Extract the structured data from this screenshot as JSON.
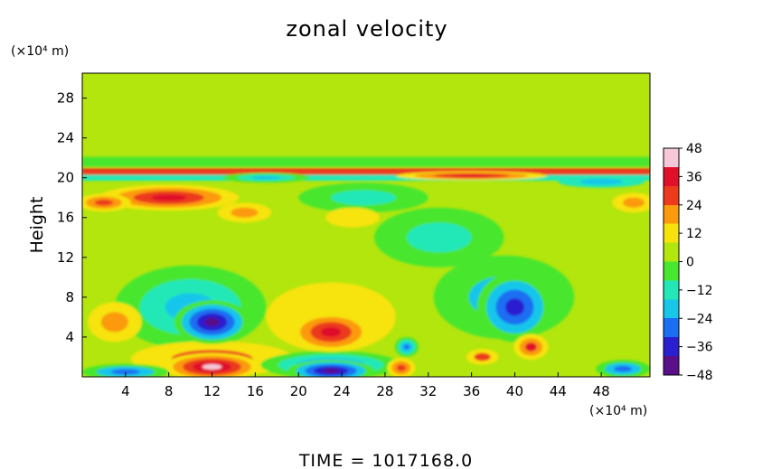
{
  "chart_data": {
    "type": "heatmap",
    "title": "zonal velocity",
    "ylabel": "Height",
    "xlabel": "",
    "x_unit_label": "(×10⁴ m)",
    "y_unit_label": "(×10⁴ m)",
    "xlim": [
      0,
      52.5
    ],
    "ylim": [
      0,
      30.5
    ],
    "x_ticks": [
      "4",
      "8",
      "12",
      "16",
      "20",
      "24",
      "28",
      "32",
      "36",
      "40",
      "44",
      "48"
    ],
    "y_ticks": [
      "4",
      "8",
      "12",
      "16",
      "20",
      "24",
      "28"
    ],
    "colorbar": {
      "range": [
        -48,
        48
      ],
      "ticks": [
        "48",
        "36",
        "24",
        "12",
        "0",
        "−12",
        "−24",
        "−36",
        "−48"
      ],
      "colors": [
        "#5a0f8a",
        "#2a1fd0",
        "#1a6ef2",
        "#18c6ea",
        "#22e8b8",
        "#49e62f",
        "#b2e60d",
        "#f7e30c",
        "#fb9a0c",
        "#ec3a1c",
        "#e00f2a",
        "#f7c8d8"
      ]
    },
    "background_value": 2,
    "features": [
      {
        "x": 12,
        "y": 5.5,
        "value": -44,
        "rx": 3.5,
        "ry": 2.2
      },
      {
        "x": 10,
        "y": 7,
        "value": -22,
        "rx": 7,
        "ry": 4.2
      },
      {
        "x": 40,
        "y": 7,
        "value": -38,
        "rx": 3.5,
        "ry": 3.5
      },
      {
        "x": 39,
        "y": 8,
        "value": -18,
        "rx": 6.5,
        "ry": 4.2
      },
      {
        "x": 23,
        "y": 4.5,
        "value": 36,
        "rx": 3.8,
        "ry": 2
      },
      {
        "x": 23,
        "y": 6,
        "value": 14,
        "rx": 6,
        "ry": 3.5
      },
      {
        "x": 41.5,
        "y": 3,
        "value": 32,
        "rx": 1.6,
        "ry": 1.3
      },
      {
        "x": 3,
        "y": 5.5,
        "value": 20,
        "rx": 2.5,
        "ry": 2
      },
      {
        "x": 12,
        "y": 1,
        "value": 44,
        "rx": 4.5,
        "ry": 1.4
      },
      {
        "x": 12,
        "y": 1.8,
        "value": 24,
        "rx": 7.5,
        "ry": 1.8
      },
      {
        "x": 23,
        "y": 0.6,
        "value": -46,
        "rx": 4,
        "ry": 1.1
      },
      {
        "x": 23,
        "y": 1.2,
        "value": -30,
        "rx": 6.5,
        "ry": 1.4
      },
      {
        "x": 30,
        "y": 3,
        "value": -32,
        "rx": 1.1,
        "ry": 1
      },
      {
        "x": 29.5,
        "y": 0.9,
        "value": 30,
        "rx": 1.3,
        "ry": 1
      },
      {
        "x": 4,
        "y": 0.5,
        "value": -26,
        "rx": 4,
        "ry": 0.8
      },
      {
        "x": 37,
        "y": 2,
        "value": 24,
        "rx": 1.5,
        "ry": 0.8
      },
      {
        "x": 50,
        "y": 0.8,
        "value": -26,
        "rx": 2.5,
        "ry": 0.9
      },
      {
        "x": 8,
        "y": 18,
        "value": 34,
        "rx": 6.5,
        "ry": 1.3
      },
      {
        "x": 2,
        "y": 17.5,
        "value": 26,
        "rx": 2.5,
        "ry": 0.9
      },
      {
        "x": 15,
        "y": 16.5,
        "value": 20,
        "rx": 2.5,
        "ry": 1
      },
      {
        "x": 36,
        "y": 20.2,
        "value": 34,
        "rx": 7,
        "ry": 0.45
      },
      {
        "x": 17,
        "y": 20,
        "value": -22,
        "rx": 4,
        "ry": 0.5
      },
      {
        "x": 48,
        "y": 19.6,
        "value": -20,
        "rx": 4,
        "ry": 0.6
      },
      {
        "x": 51,
        "y": 17.5,
        "value": 18,
        "rx": 2,
        "ry": 1
      },
      {
        "x": 26,
        "y": 18,
        "value": -16,
        "rx": 6,
        "ry": 1.5
      },
      {
        "x": 33,
        "y": 14,
        "value": -12,
        "rx": 6,
        "ry": 3
      },
      {
        "x": 25,
        "y": 16,
        "value": 12,
        "rx": 2.5,
        "ry": 1
      }
    ],
    "bands": [
      {
        "y": 20.6,
        "half_width": 0.35,
        "value": 26
      },
      {
        "y": 20.0,
        "half_width": 0.3,
        "value": -14
      },
      {
        "y": 21.6,
        "half_width": 0.5,
        "value": -4
      }
    ],
    "time_label": "TIME  =  1017168.0"
  }
}
